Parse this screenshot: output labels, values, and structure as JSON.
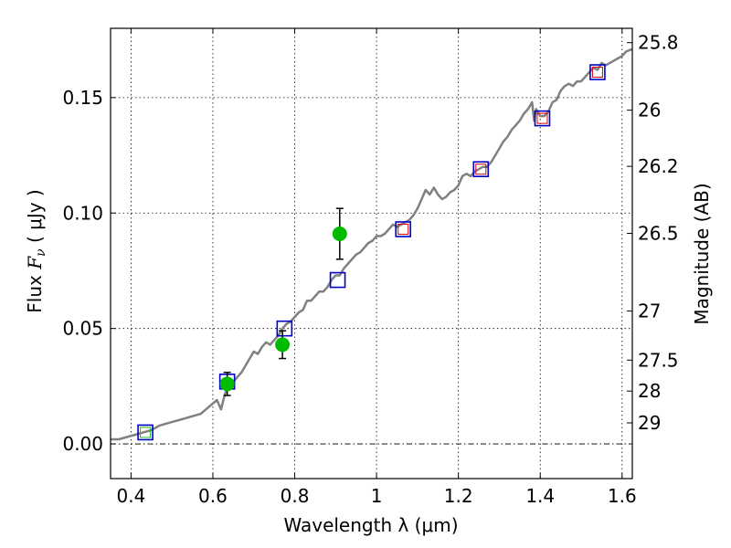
{
  "chart_data": {
    "type": "scatter",
    "xlabel": "Wavelength  λ (μm)",
    "ylabel": "Flux  F_ν  ( μJy )",
    "ylabel_parts": {
      "pre": "Flux  ",
      "var": "F",
      "sub": "ν",
      "post": "  ( μJy )"
    },
    "y2label": "Magnitude (AB)",
    "xlim": [
      0.35,
      1.625
    ],
    "ylim": [
      -0.015,
      0.18
    ],
    "grid": true,
    "x_ticks": [
      {
        "value": 0.4,
        "label": "0.4"
      },
      {
        "value": 0.6,
        "label": "0.6"
      },
      {
        "value": 0.8,
        "label": "0.8"
      },
      {
        "value": 1.0,
        "label": "1"
      },
      {
        "value": 1.2,
        "label": "1.2"
      },
      {
        "value": 1.4,
        "label": "1.4"
      },
      {
        "value": 1.6,
        "label": "1.6"
      }
    ],
    "y_ticks": [
      {
        "value": 0.0,
        "label": "0.00"
      },
      {
        "value": 0.05,
        "label": "0.05"
      },
      {
        "value": 0.1,
        "label": "0.10"
      },
      {
        "value": 0.15,
        "label": "0.15"
      }
    ],
    "y2_ticks": [
      {
        "value": 25.8,
        "label": "25.8"
      },
      {
        "value": 26.0,
        "label": "26"
      },
      {
        "value": 26.2,
        "label": "26.2"
      },
      {
        "value": 26.5,
        "label": "26.5"
      },
      {
        "value": 27.0,
        "label": "27"
      },
      {
        "value": 27.5,
        "label": "27.5"
      },
      {
        "value": 28.0,
        "label": "28"
      },
      {
        "value": 29.0,
        "label": "29"
      }
    ],
    "zero_line": 0.0,
    "series": [
      {
        "kind": "line",
        "color": "#808080",
        "points": [
          [
            0.35,
            0.002
          ],
          [
            0.37,
            0.002
          ],
          [
            0.39,
            0.003
          ],
          [
            0.41,
            0.004
          ],
          [
            0.43,
            0.005
          ],
          [
            0.45,
            0.006
          ],
          [
            0.47,
            0.008
          ],
          [
            0.49,
            0.009
          ],
          [
            0.51,
            0.01
          ],
          [
            0.53,
            0.011
          ],
          [
            0.55,
            0.012
          ],
          [
            0.57,
            0.013
          ],
          [
            0.59,
            0.016
          ],
          [
            0.61,
            0.019
          ],
          [
            0.62,
            0.015
          ],
          [
            0.63,
            0.022
          ],
          [
            0.64,
            0.025
          ],
          [
            0.65,
            0.027
          ],
          [
            0.66,
            0.029
          ],
          [
            0.67,
            0.031
          ],
          [
            0.68,
            0.034
          ],
          [
            0.69,
            0.037
          ],
          [
            0.7,
            0.04
          ],
          [
            0.71,
            0.039
          ],
          [
            0.72,
            0.042
          ],
          [
            0.73,
            0.044
          ],
          [
            0.74,
            0.043
          ],
          [
            0.75,
            0.045
          ],
          [
            0.76,
            0.047
          ],
          [
            0.77,
            0.05
          ],
          [
            0.78,
            0.052
          ],
          [
            0.79,
            0.053
          ],
          [
            0.8,
            0.055
          ],
          [
            0.81,
            0.057
          ],
          [
            0.82,
            0.058
          ],
          [
            0.83,
            0.062
          ],
          [
            0.84,
            0.062
          ],
          [
            0.85,
            0.064
          ],
          [
            0.86,
            0.066
          ],
          [
            0.87,
            0.066
          ],
          [
            0.88,
            0.068
          ],
          [
            0.89,
            0.071
          ],
          [
            0.9,
            0.073
          ],
          [
            0.91,
            0.073
          ],
          [
            0.92,
            0.076
          ],
          [
            0.93,
            0.078
          ],
          [
            0.94,
            0.08
          ],
          [
            0.95,
            0.082
          ],
          [
            0.96,
            0.083
          ],
          [
            0.97,
            0.085
          ],
          [
            0.98,
            0.087
          ],
          [
            0.99,
            0.088
          ],
          [
            1.0,
            0.09
          ],
          [
            1.01,
            0.09
          ],
          [
            1.02,
            0.091
          ],
          [
            1.03,
            0.093
          ],
          [
            1.04,
            0.095
          ],
          [
            1.05,
            0.094
          ],
          [
            1.06,
            0.095
          ],
          [
            1.07,
            0.096
          ],
          [
            1.08,
            0.097
          ],
          [
            1.09,
            0.099
          ],
          [
            1.1,
            0.102
          ],
          [
            1.11,
            0.106
          ],
          [
            1.12,
            0.11
          ],
          [
            1.13,
            0.108
          ],
          [
            1.14,
            0.111
          ],
          [
            1.15,
            0.108
          ],
          [
            1.16,
            0.106
          ],
          [
            1.17,
            0.107
          ],
          [
            1.18,
            0.109
          ],
          [
            1.19,
            0.11
          ],
          [
            1.2,
            0.112
          ],
          [
            1.21,
            0.116
          ],
          [
            1.22,
            0.117
          ],
          [
            1.23,
            0.116
          ],
          [
            1.24,
            0.118
          ],
          [
            1.25,
            0.119
          ],
          [
            1.26,
            0.12
          ],
          [
            1.27,
            0.12
          ],
          [
            1.28,
            0.122
          ],
          [
            1.29,
            0.125
          ],
          [
            1.3,
            0.128
          ],
          [
            1.31,
            0.131
          ],
          [
            1.32,
            0.133
          ],
          [
            1.33,
            0.136
          ],
          [
            1.34,
            0.138
          ],
          [
            1.35,
            0.14
          ],
          [
            1.36,
            0.143
          ],
          [
            1.37,
            0.145
          ],
          [
            1.38,
            0.148
          ],
          [
            1.385,
            0.14
          ],
          [
            1.39,
            0.145
          ],
          [
            1.4,
            0.142
          ],
          [
            1.41,
            0.142
          ],
          [
            1.42,
            0.144
          ],
          [
            1.43,
            0.148
          ],
          [
            1.44,
            0.149
          ],
          [
            1.45,
            0.153
          ],
          [
            1.46,
            0.155
          ],
          [
            1.47,
            0.156
          ],
          [
            1.48,
            0.155
          ],
          [
            1.49,
            0.157
          ],
          [
            1.5,
            0.157
          ],
          [
            1.51,
            0.159
          ],
          [
            1.52,
            0.161
          ],
          [
            1.53,
            0.163
          ],
          [
            1.54,
            0.162
          ],
          [
            1.55,
            0.165
          ],
          [
            1.56,
            0.164
          ],
          [
            1.57,
            0.165
          ],
          [
            1.58,
            0.166
          ],
          [
            1.59,
            0.167
          ],
          [
            1.6,
            0.168
          ],
          [
            1.61,
            0.17
          ],
          [
            1.625,
            0.171
          ]
        ]
      },
      {
        "kind": "square-marker",
        "color": "#0000cc",
        "points": [
          [
            0.435,
            0.005
          ],
          [
            0.635,
            0.027
          ],
          [
            0.775,
            0.05
          ],
          [
            0.905,
            0.071
          ],
          [
            1.065,
            0.093
          ],
          [
            1.255,
            0.119
          ],
          [
            1.405,
            0.141
          ],
          [
            1.54,
            0.161
          ]
        ]
      },
      {
        "kind": "small-square-marker",
        "color": "#dd0000",
        "points": [
          [
            1.065,
            0.093
          ],
          [
            1.255,
            0.119
          ],
          [
            1.405,
            0.141
          ],
          [
            1.54,
            0.161
          ]
        ]
      },
      {
        "kind": "small-square-marker",
        "color": "#22bb22",
        "points": [
          [
            0.435,
            0.005
          ]
        ]
      },
      {
        "kind": "circle-errorbar",
        "color": "#00bb00",
        "points": [
          {
            "x": 0.635,
            "y": 0.026,
            "err": 0.005
          },
          {
            "x": 0.77,
            "y": 0.043,
            "err": 0.006
          },
          {
            "x": 0.91,
            "y": 0.091,
            "err": 0.011
          }
        ]
      }
    ]
  }
}
